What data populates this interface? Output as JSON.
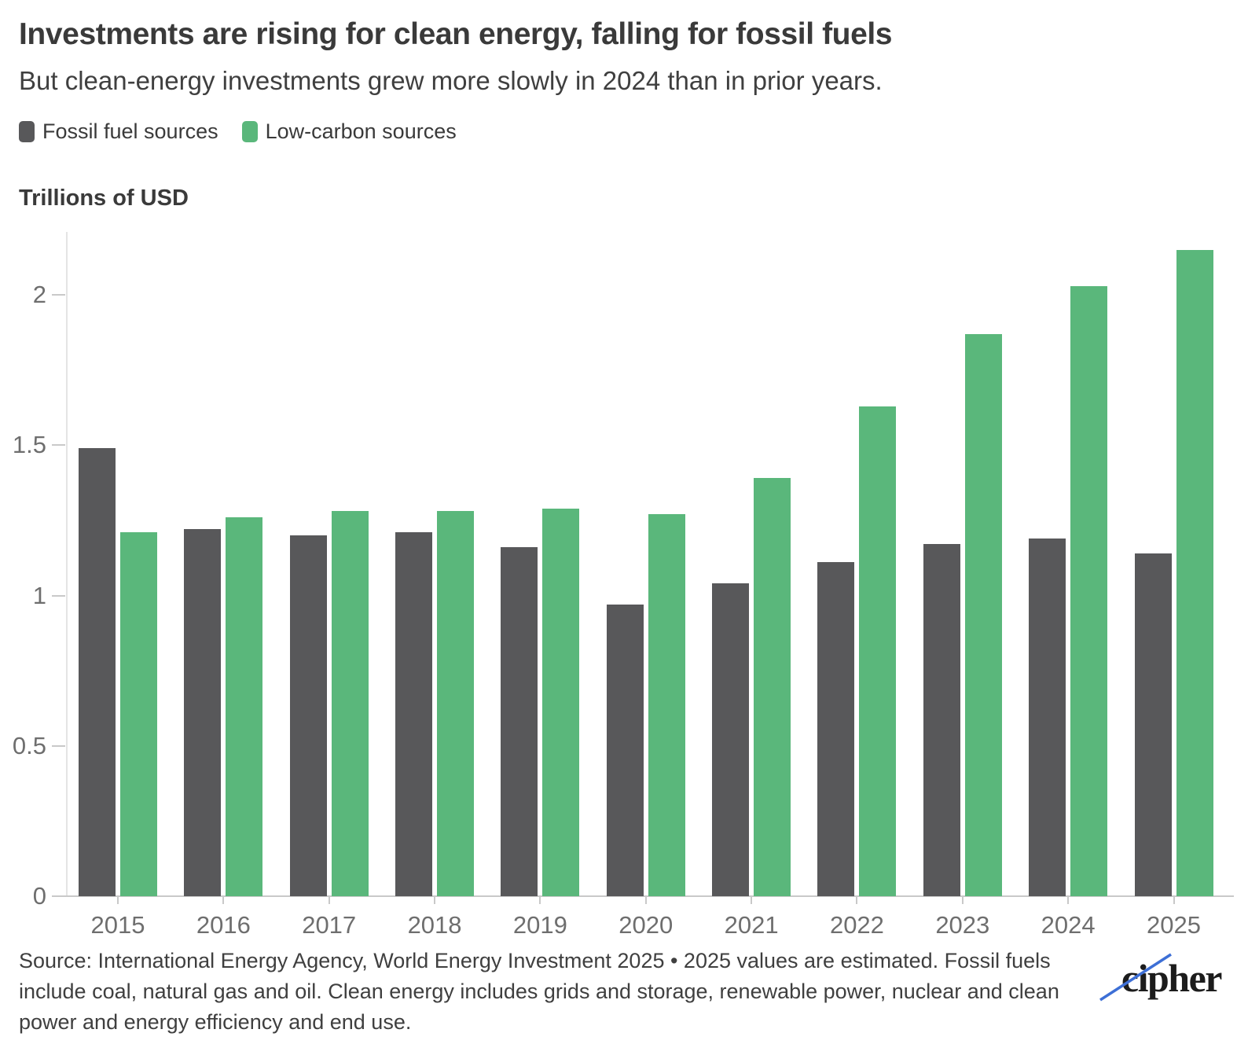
{
  "chart_data": {
    "type": "bar",
    "title": "Investments are rising for clean energy, falling for fossil fuels",
    "subtitle": "But clean-energy investments grew more slowly in 2024 than in prior years.",
    "ylabel": "Trillions of USD",
    "xlabel": "",
    "categories": [
      "2015",
      "2016",
      "2017",
      "2018",
      "2019",
      "2020",
      "2021",
      "2022",
      "2023",
      "2024",
      "2025"
    ],
    "series": [
      {
        "name": "Fossil fuel sources",
        "color": "#58585a",
        "values": [
          1.49,
          1.22,
          1.2,
          1.21,
          1.16,
          0.97,
          1.04,
          1.11,
          1.17,
          1.19,
          1.14
        ]
      },
      {
        "name": "Low-carbon sources",
        "color": "#5ab77b",
        "values": [
          1.21,
          1.26,
          1.28,
          1.28,
          1.29,
          1.27,
          1.39,
          1.63,
          1.87,
          2.03,
          2.15
        ]
      }
    ],
    "ylim": [
      0,
      2.21
    ],
    "yticks": [
      0,
      0.5,
      1,
      1.5,
      2
    ],
    "grid": false,
    "legend_position": "top-left"
  },
  "footer": {
    "source": "Source: International Energy Agency, World Energy Investment 2025 • 2025 values are estimated. Fossil fuels include coal, natural gas and oil. Clean energy includes grids and storage, renewable power, nuclear and clean power and energy efficiency and end use.",
    "logo_text": "cipher"
  },
  "colors": {
    "fossil": "#58585a",
    "low_carbon": "#5ab77b",
    "axis": "#c9c9c9",
    "tick_label": "#6e6e6e",
    "logo_slash": "#3d6fd6"
  }
}
